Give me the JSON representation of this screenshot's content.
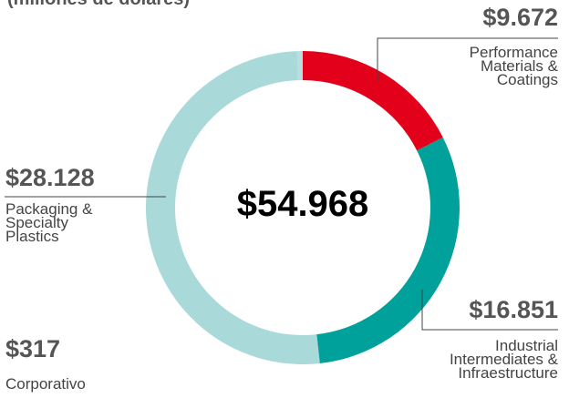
{
  "chart_data": {
    "type": "donut",
    "subtitle": "(millones de dólares)",
    "center_label": "$54.968",
    "categories": [
      "Performance Materials & Coatings",
      "Industrial Intermediates & Infraestructure",
      "Packaging & Specialty Plastics",
      "Corporativo"
    ],
    "values": [
      9672,
      16851,
      28128,
      317
    ],
    "value_labels": [
      "$9.672",
      "$16.851",
      "$28.128",
      "$317"
    ],
    "colors": [
      "#e2001a",
      "#00a19a",
      "#a9d9d9",
      "#b9dfdf"
    ]
  }
}
